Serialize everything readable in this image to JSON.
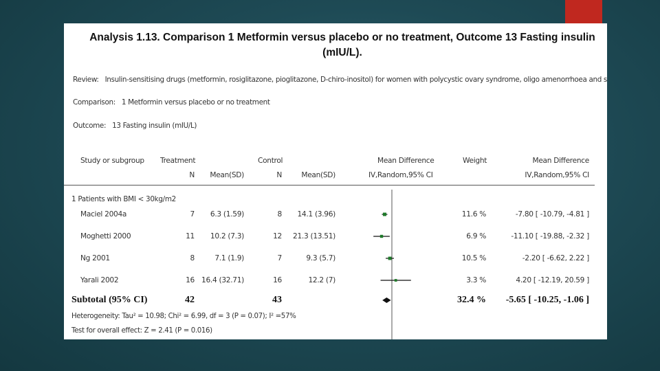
{
  "analysis": {
    "title_line1": "Analysis 1.13.   Comparison 1 Metformin versus placebo or no treatment, Outcome 13 Fasting insulin",
    "title_line2": "(mIU/L).",
    "review_key": "Review:",
    "review_value": "Insulin-sensitising drugs (metformin, rosiglitazone, pioglitazone, D-chiro-inositol) for women with polycystic ovary syndrome, oligo amenorrhoea and subfertility",
    "comparison_key": "Comparison:",
    "comparison_value": "1 Metformin versus placebo or no treatment",
    "outcome_key": "Outcome:",
    "outcome_value": "13 Fasting insulin (mIU/L)"
  },
  "headers": {
    "study": "Study or subgroup",
    "treatment": "Treatment",
    "treatment_n": "N",
    "treatment_mean": "Mean(SD)",
    "control": "Control",
    "control_n": "N",
    "control_mean": "Mean(SD)",
    "md": "Mean Difference",
    "md_sub": "IV,Random,95% CI",
    "weight": "Weight",
    "md2": "Mean Difference",
    "md2_sub": "IV,Random,95% CI"
  },
  "group_label": "1 Patients with BMI < 30kg/m2",
  "chart_data": {
    "type": "forest",
    "studies": [
      {
        "name": "Maciel 2004a",
        "t_n": "7",
        "t_mean_sd": "6.3 (1.59)",
        "c_n": "8",
        "c_mean_sd": "14.1 (3.96)",
        "weight": "11.6 %",
        "ci_text": "-7.80 [ -10.79, -4.81 ]",
        "md": -7.8,
        "lo": -10.79,
        "hi": -4.81,
        "w": 11.6
      },
      {
        "name": "Moghetti 2000",
        "t_n": "11",
        "t_mean_sd": "10.2 (7.3)",
        "c_n": "12",
        "c_mean_sd": "21.3 (13.51)",
        "weight": "6.9 %",
        "ci_text": "-11.10 [ -19.88, -2.32 ]",
        "md": -11.1,
        "lo": -19.88,
        "hi": -2.32,
        "w": 6.9
      },
      {
        "name": "Ng 2001",
        "t_n": "8",
        "t_mean_sd": "7.1 (1.9)",
        "c_n": "7",
        "c_mean_sd": "9.3 (5.7)",
        "weight": "10.5 %",
        "ci_text": "-2.20 [ -6.62, 2.22 ]",
        "md": -2.2,
        "lo": -6.62,
        "hi": 2.22,
        "w": 10.5
      },
      {
        "name": "Yarali 2002",
        "t_n": "16",
        "t_mean_sd": "16.4 (32.71)",
        "c_n": "16",
        "c_mean_sd": "12.2 (7)",
        "weight": "3.3 %",
        "ci_text": "4.20 [ -12.19, 20.59 ]",
        "md": 4.2,
        "lo": -12.19,
        "hi": 20.59,
        "w": 3.3
      }
    ],
    "subtotal": {
      "label": "Subtotal (95% CI)",
      "t_n": "42",
      "c_n": "43",
      "weight": "32.4 %",
      "ci_text": "-5.65 [ -10.25, -1.06 ]",
      "md": -5.65,
      "lo": -10.25,
      "hi": -1.06
    },
    "x_range": [
      -100,
      100
    ]
  },
  "footer": {
    "heterogeneity": "Heterogeneity: Tau² = 10.98; Chi² = 6.99, df = 3 (P = 0.07); I² =57%",
    "overall": "Test for overall effect: Z = 2.41 (P = 0.016)"
  }
}
